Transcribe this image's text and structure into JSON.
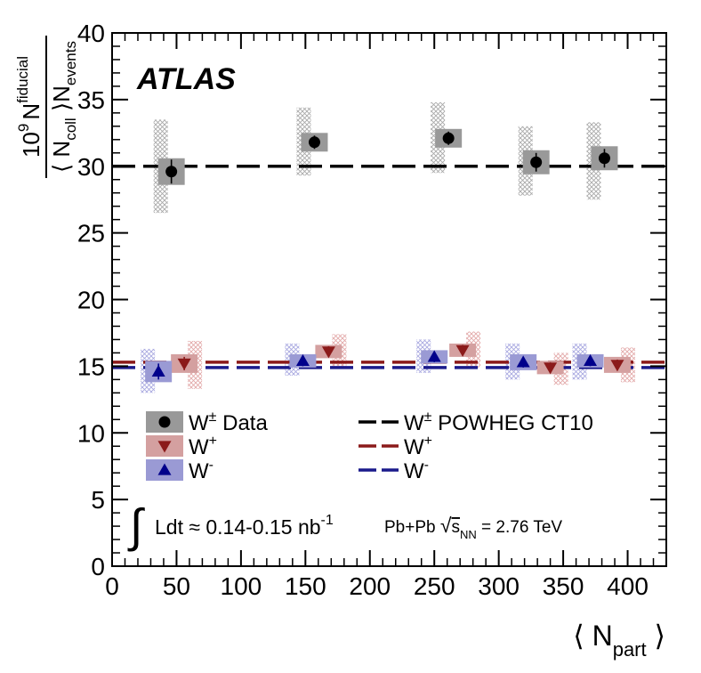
{
  "chart_data": {
    "type": "scatter",
    "title": "",
    "experiment_label": "ATLAS",
    "xlabel": {
      "pre": "⟨ N",
      "sub": "part",
      "post": " ⟩"
    },
    "ylabel": {
      "num_pre": "10",
      "num_sup": "9",
      "num_n": "N",
      "num_n_sup": "fiducial",
      "den_pre": "⟨ N",
      "den_sub": "coll",
      "den_mid": " ⟩N",
      "den_sub2": "events"
    },
    "xlim": [
      0,
      430
    ],
    "ylim": [
      0,
      40
    ],
    "x_ticks": [
      0,
      50,
      100,
      150,
      200,
      250,
      300,
      350,
      400
    ],
    "y_ticks": [
      0,
      5,
      10,
      15,
      20,
      25,
      30,
      35,
      40
    ],
    "predictions": [
      {
        "name": "W± POWHEG CT10",
        "y": 30.0,
        "color": "#000000"
      },
      {
        "name": "W+ POWHEG CT10",
        "y": 15.3,
        "color": "#8b1a1a"
      },
      {
        "name": "W- POWHEG CT10",
        "y": 14.9,
        "color": "#1a1a8b"
      }
    ],
    "series": [
      {
        "name": "W± Data",
        "marker": "circle",
        "color": "#000000",
        "box_color": "#999999",
        "hatch_color": "#a8a8a8",
        "points": [
          {
            "x": 46,
            "y": 29.6,
            "err": 0.9,
            "sys": 1.0,
            "band": [
              26.5,
              33.5
            ]
          },
          {
            "x": 157,
            "y": 31.8,
            "err": 0.5,
            "sys": 0.7,
            "band": [
              29.3,
              34.4
            ]
          },
          {
            "x": 261,
            "y": 32.1,
            "err": 0.5,
            "sys": 0.7,
            "band": [
              29.5,
              34.8
            ]
          },
          {
            "x": 329,
            "y": 30.3,
            "err": 0.7,
            "sys": 0.9,
            "band": [
              27.8,
              33.0
            ]
          },
          {
            "x": 382,
            "y": 30.6,
            "err": 0.7,
            "sys": 0.9,
            "band": [
              27.5,
              33.3
            ]
          }
        ]
      },
      {
        "name": "W+",
        "marker": "triangle-down",
        "color": "#8b1a1a",
        "box_color": "#d4a0a0",
        "hatch_color": "#e2a8a8",
        "points": [
          {
            "x": 56,
            "y": 15.2,
            "err": 0.5,
            "sys": 0.7,
            "band": [
              13.3,
              16.9
            ]
          },
          {
            "x": 168,
            "y": 16.1,
            "err": 0.4,
            "sys": 0.5,
            "band": [
              14.8,
              17.4
            ]
          },
          {
            "x": 272,
            "y": 16.2,
            "err": 0.4,
            "sys": 0.5,
            "band": [
              14.9,
              17.6
            ]
          },
          {
            "x": 340,
            "y": 14.9,
            "err": 0.4,
            "sys": 0.5,
            "band": [
              13.6,
              16.0
            ]
          },
          {
            "x": 392,
            "y": 15.1,
            "err": 0.4,
            "sys": 0.6,
            "band": [
              13.8,
              16.4
            ]
          }
        ]
      },
      {
        "name": "W-",
        "marker": "triangle-up",
        "color": "#00008b",
        "box_color": "#9a9ad4",
        "hatch_color": "#a8a8e0",
        "points": [
          {
            "x": 36,
            "y": 14.6,
            "err": 0.6,
            "sys": 0.8,
            "band": [
              13.0,
              16.3
            ]
          },
          {
            "x": 148,
            "y": 15.4,
            "err": 0.4,
            "sys": 0.5,
            "band": [
              14.3,
              16.7
            ]
          },
          {
            "x": 250,
            "y": 15.7,
            "err": 0.4,
            "sys": 0.5,
            "band": [
              14.5,
              17.0
            ]
          },
          {
            "x": 319,
            "y": 15.3,
            "err": 0.4,
            "sys": 0.6,
            "band": [
              14.0,
              16.7
            ]
          },
          {
            "x": 371,
            "y": 15.4,
            "err": 0.4,
            "sys": 0.5,
            "band": [
              14.0,
              16.7
            ]
          }
        ]
      }
    ],
    "legend": {
      "placement": "bottom",
      "data_entries": [
        {
          "base": "W",
          "sup": "±",
          "text": " Data",
          "marker": "circle",
          "color": "#000000",
          "box_color": "#999999"
        },
        {
          "base": "W",
          "sup": "+",
          "text": "",
          "marker": "triangle-down",
          "color": "#8b1a1a",
          "box_color": "#d4a0a0"
        },
        {
          "base": "W",
          "sup": "-",
          "text": "",
          "marker": "triangle-up",
          "color": "#00008b",
          "box_color": "#9a9ad4"
        }
      ],
      "line_entries": [
        {
          "base": "W",
          "sup": "±",
          "text": " POWHEG CT10",
          "color": "#000000"
        },
        {
          "base": "W",
          "sup": "+",
          "text": "",
          "color": "#8b1a1a"
        },
        {
          "base": "W",
          "sup": "-",
          "text": "",
          "color": "#1a1a8b"
        }
      ]
    },
    "annotations": {
      "integral": "∫",
      "lumi_text": "Ldt ≈ 0.14-0.15 nb",
      "lumi_sup": "-1",
      "system_pre": "Pb+Pb ",
      "sqrt_sym": "√",
      "sqrt_s": "s",
      "sqrt_sub": "NN",
      "system_post": " = 2.76 TeV"
    }
  }
}
